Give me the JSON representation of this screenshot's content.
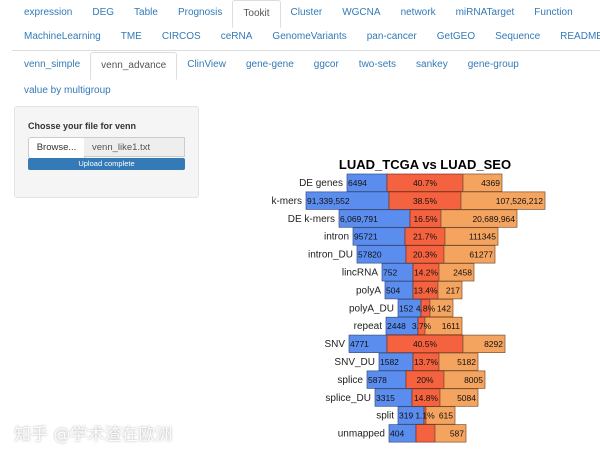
{
  "nav_row1": [
    "expression",
    "DEG",
    "Table",
    "Prognosis",
    "Tookit",
    "Cluster",
    "WGCNA",
    "network",
    "miRNATarget",
    "Function"
  ],
  "nav_row2": [
    "MachineLearning",
    "TME",
    "CIRCOS",
    "ceRNA",
    "GenomeVariants",
    "pan-cancer",
    "GetGEO",
    "Sequence",
    "README"
  ],
  "nav_active": "Tookit",
  "sub_row1": [
    "venn_simple",
    "venn_advance",
    "ClinView",
    "gene-gene",
    "ggcor",
    "two-sets",
    "sankey",
    "gene-group"
  ],
  "sub_row2": [
    "value by multigroup"
  ],
  "sub_active": "venn_advance",
  "panel": {
    "label": "Chosse your file for venn",
    "browse": "Browse...",
    "file": "venn_like1.txt",
    "progress_text": "Upload complete",
    "progress": 100
  },
  "watermark": "知乎 @学术渣在欧洲",
  "colors": {
    "left": "#5b8def",
    "middle": "#f4623f",
    "right": "#f4a45f",
    "link": "#337ab7"
  },
  "chart_data": {
    "type": "bar",
    "title": "LUAD_TCGA  vs  LUAD_SEO",
    "categories": [
      "DE genes",
      "k-mers",
      "DE k-mers",
      "intron",
      "intron_DU",
      "lincRNA",
      "polyA",
      "polyA_DU",
      "repeat",
      "SNV",
      "SNV_DU",
      "splice",
      "splice_DU",
      "split",
      "unmapped"
    ],
    "left_values": [
      "6494",
      "91,339,552",
      "6,069,791",
      "95721",
      "57820",
      "752",
      "504",
      "152",
      "2448",
      "4771",
      "1582",
      "5878",
      "3315",
      "319",
      "404"
    ],
    "overlap_percent": [
      "40.7%",
      "38.5%",
      "16.5%",
      "21.7%",
      "20.3%",
      "14.2%",
      "13.4%",
      "4.8%",
      "3.7%",
      "40.5%",
      "13.7%",
      "20%",
      "14.8%",
      "1.1%",
      ""
    ],
    "right_values": [
      "4369",
      "107,526,212",
      "20,689,964",
      "111345",
      "61277",
      "2458",
      "217",
      "142",
      "1611",
      "8292",
      "5182",
      "8005",
      "5084",
      "615",
      "587"
    ]
  }
}
